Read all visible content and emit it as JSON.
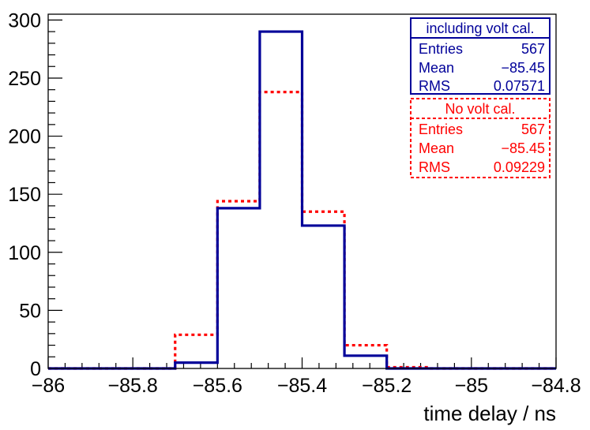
{
  "chart_data": {
    "type": "histogram",
    "title": "",
    "xlabel": "time delay / ns",
    "ylabel": "",
    "xlim": [
      -86,
      -84.8
    ],
    "ylim": [
      0,
      305
    ],
    "x_ticks": [
      -86,
      -85.8,
      -85.6,
      -85.4,
      -85.2,
      -85,
      -84.8
    ],
    "x_tick_labels": [
      "−86",
      "−85.8",
      "−85.6",
      "−85.4",
      "−85.2",
      "−85",
      "−84.8"
    ],
    "y_ticks": [
      0,
      50,
      100,
      150,
      200,
      250,
      300
    ],
    "y_tick_labels": [
      "0",
      "50",
      "100",
      "150",
      "200",
      "250",
      "300"
    ],
    "bin_width": 0.1,
    "series": [
      {
        "name": "including volt cal.",
        "color": "#000099",
        "style": "solid",
        "bin_edges": [
          -86.0,
          -85.9,
          -85.8,
          -85.7,
          -85.6,
          -85.5,
          -85.4,
          -85.3,
          -85.2,
          -85.1,
          -85.0,
          -84.9,
          -84.8
        ],
        "counts": [
          0,
          0,
          0,
          5,
          138,
          290,
          123,
          11,
          0,
          0,
          0,
          0
        ],
        "stats": {
          "entries_label": "Entries",
          "entries": "567",
          "mean_label": "Mean",
          "mean": "−85.45",
          "rms_label": "RMS",
          "rms": "0.07571"
        }
      },
      {
        "name": "No volt cal.",
        "color": "#ff0000",
        "style": "dotted",
        "bin_edges": [
          -86.0,
          -85.9,
          -85.8,
          -85.7,
          -85.6,
          -85.5,
          -85.4,
          -85.3,
          -85.2,
          -85.1,
          -85.0,
          -84.9,
          -84.8
        ],
        "counts": [
          0,
          0,
          0,
          29,
          144,
          238,
          135,
          20,
          1,
          0,
          0,
          0
        ],
        "stats": {
          "entries_label": "Entries",
          "entries": "567",
          "mean_label": "Mean",
          "mean": "−85.45",
          "rms_label": "RMS",
          "rms": "0.09229"
        }
      }
    ]
  }
}
